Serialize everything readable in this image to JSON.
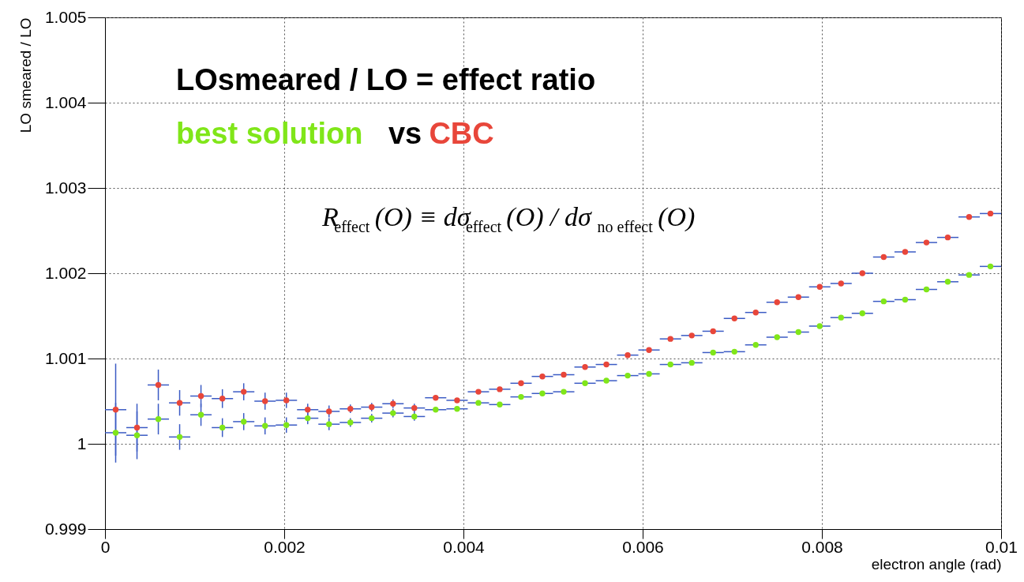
{
  "chart_data": {
    "type": "scatter",
    "xlabel": "electron angle (rad)",
    "ylabel": "LO smeared / LO",
    "x": [
      0.000119,
      0.000357,
      0.000595,
      0.000833,
      0.001071,
      0.00131,
      0.001548,
      0.001786,
      0.002024,
      0.002262,
      0.0025,
      0.002738,
      0.002976,
      0.003214,
      0.003452,
      0.00369,
      0.003929,
      0.004167,
      0.004405,
      0.004643,
      0.004881,
      0.005119,
      0.005357,
      0.005595,
      0.005833,
      0.006071,
      0.00631,
      0.006548,
      0.006786,
      0.007024,
      0.007262,
      0.0075,
      0.007738,
      0.007976,
      0.008214,
      0.008452,
      0.00869,
      0.008929,
      0.009167,
      0.009405,
      0.009643,
      0.009881
    ],
    "series": [
      {
        "name": "best solution",
        "color": "#80e619",
        "values": [
          1.00013,
          1.0001,
          1.00029,
          1.00008,
          1.00034,
          1.00019,
          1.00026,
          1.00021,
          1.00022,
          1.0003,
          1.00023,
          1.00025,
          1.0003,
          1.00036,
          1.00032,
          1.0004,
          1.00041,
          1.00048,
          1.00046,
          1.00055,
          1.00059,
          1.00061,
          1.00071,
          1.00074,
          1.0008,
          1.00082,
          1.00093,
          1.00095,
          1.00107,
          1.00108,
          1.00116,
          1.00125,
          1.00131,
          1.00138,
          1.00148,
          1.00153,
          1.00167,
          1.00169,
          1.00181,
          1.0019,
          1.00198,
          1.00208
        ],
        "errors": [
          0.00035,
          0.00028,
          0.00018,
          0.00015,
          0.00013,
          0.00011,
          0.0001,
          0.0001,
          9e-05,
          7e-05,
          7e-05,
          5e-05,
          5e-05,
          5e-05,
          5e-05,
          null,
          null,
          null,
          null,
          null,
          null,
          null,
          null,
          null,
          null,
          null,
          null,
          null,
          null,
          null,
          null,
          null,
          null,
          null,
          null,
          null,
          null,
          null,
          null,
          null,
          null,
          null
        ],
        "xerrors": [
          0.000119,
          0.000119,
          0.000119,
          0.000119,
          0.000119,
          0.000119,
          0.000119,
          0.000119,
          0.000119,
          0.000119,
          0.000119,
          0.000119,
          0.000119,
          0.000119,
          0.000119,
          0.000119,
          0.000119,
          0.000119,
          0.000119,
          0.000119,
          0.000119,
          0.000119,
          0.000119,
          0.000119,
          0.000119,
          0.000119,
          0.000119,
          0.000119,
          0.000119,
          0.000119,
          0.000119,
          0.000119,
          0.000119,
          0.000119,
          0.000119,
          0.000119,
          0.000119,
          0.000119,
          0.000119,
          0.000119,
          0.000119,
          0.000119
        ]
      },
      {
        "name": "CBC",
        "color": "#e8463a",
        "values": [
          1.0004,
          1.00019,
          1.00069,
          1.00048,
          1.00056,
          1.00053,
          1.00061,
          1.0005,
          1.00051,
          1.0004,
          1.00038,
          1.00041,
          1.00043,
          1.00047,
          1.00042,
          1.00054,
          1.00051,
          1.00061,
          1.00064,
          1.00071,
          1.00079,
          1.00081,
          1.0009,
          1.00093,
          1.00104,
          1.0011,
          1.00123,
          1.00127,
          1.00132,
          1.00147,
          1.00154,
          1.00166,
          1.00172,
          1.00184,
          1.00188,
          1.002,
          1.00219,
          1.00225,
          1.00236,
          1.00242,
          1.00266,
          1.0027
        ],
        "errors": [
          0.00054,
          0.00028,
          0.00018,
          0.00015,
          0.00013,
          0.00011,
          0.0001,
          0.0001,
          9e-05,
          7e-05,
          7e-05,
          5e-05,
          5e-05,
          5e-05,
          5e-05,
          null,
          null,
          null,
          null,
          null,
          null,
          null,
          null,
          null,
          null,
          null,
          null,
          null,
          null,
          null,
          null,
          null,
          null,
          null,
          null,
          null,
          null,
          null,
          null,
          null,
          null,
          null
        ],
        "xerrors": [
          0.000119,
          0.000119,
          0.000119,
          0.000119,
          0.000119,
          0.000119,
          0.000119,
          0.000119,
          0.000119,
          0.000119,
          0.000119,
          0.000119,
          0.000119,
          0.000119,
          0.000119,
          0.000119,
          0.000119,
          0.000119,
          0.000119,
          0.000119,
          0.000119,
          0.000119,
          0.000119,
          0.000119,
          0.000119,
          0.000119,
          0.000119,
          0.000119,
          0.000119,
          0.000119,
          0.000119,
          0.000119,
          0.000119,
          0.000119,
          0.000119,
          0.000119,
          0.000119,
          0.000119,
          0.000119,
          0.000119,
          0.000119,
          0.000119
        ]
      }
    ],
    "annotations": [
      "LOsmeared / LO = effect ratio",
      "vs",
      "R$_{effect}$(O) ≡ dσ$_{effect}$(O) / dσ$_{no effect}$(O)"
    ],
    "xlim": [
      0,
      0.01
    ],
    "xticks": [
      0,
      0.002,
      0.004,
      0.006,
      0.008,
      0.01
    ],
    "ylim": [
      0.999,
      1.005
    ],
    "yticks": [
      0.999,
      1,
      1.001,
      1.002,
      1.003,
      1.004,
      1.005
    ],
    "grid": true,
    "legend": "top left",
    "marker": "circle"
  }
}
